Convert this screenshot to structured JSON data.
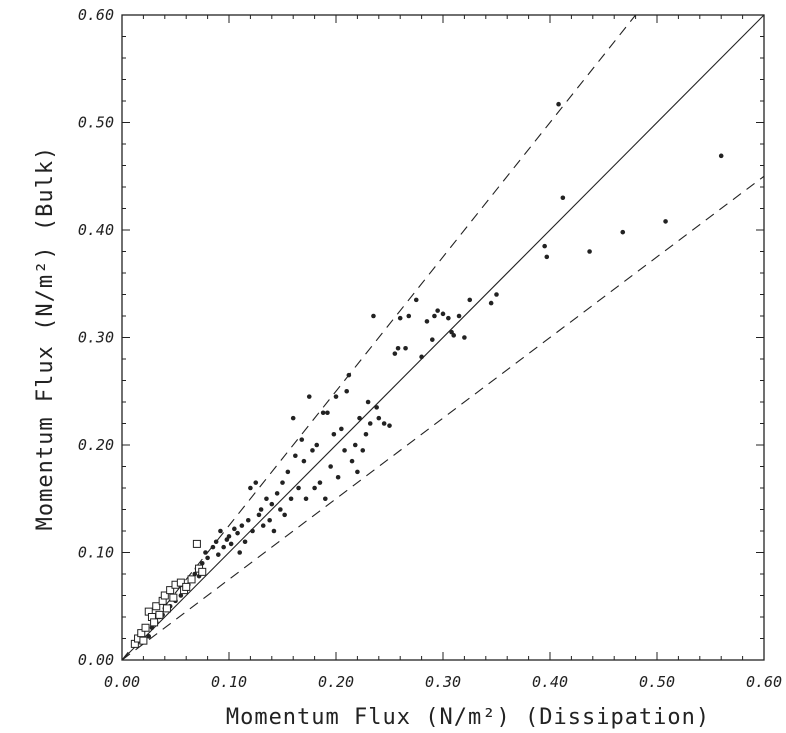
{
  "chart_data": {
    "type": "scatter",
    "xlabel": "Momentum Flux   (N/m²)  (Dissipation)",
    "ylabel": "Momentum Flux  (N/m²)     (Bulk)",
    "xlim": [
      0.0,
      0.6
    ],
    "ylim": [
      0.0,
      0.6
    ],
    "xticks": [
      "0.00",
      "0.10",
      "0.20",
      "0.30",
      "0.40",
      "0.50",
      "0.60"
    ],
    "yticks": [
      "0.00",
      "0.10",
      "0.20",
      "0.30",
      "0.40",
      "0.50",
      "0.60"
    ],
    "grid": false,
    "reference_lines": [
      {
        "style": "solid",
        "slope": 1.0
      },
      {
        "style": "dashed",
        "slope": 1.25
      },
      {
        "style": "dashed",
        "slope": 0.75
      }
    ],
    "series": [
      {
        "marker": "filled-dot",
        "points": [
          [
            0.02,
            0.018
          ],
          [
            0.025,
            0.022
          ],
          [
            0.028,
            0.03
          ],
          [
            0.032,
            0.035
          ],
          [
            0.035,
            0.04
          ],
          [
            0.038,
            0.042
          ],
          [
            0.04,
            0.048
          ],
          [
            0.045,
            0.05
          ],
          [
            0.05,
            0.055
          ],
          [
            0.055,
            0.06
          ],
          [
            0.058,
            0.065
          ],
          [
            0.062,
            0.07
          ],
          [
            0.065,
            0.075
          ],
          [
            0.068,
            0.08
          ],
          [
            0.07,
            0.085
          ],
          [
            0.072,
            0.078
          ],
          [
            0.075,
            0.09
          ],
          [
            0.078,
            0.1
          ],
          [
            0.08,
            0.095
          ],
          [
            0.085,
            0.105
          ],
          [
            0.088,
            0.11
          ],
          [
            0.09,
            0.098
          ],
          [
            0.092,
            0.12
          ],
          [
            0.095,
            0.105
          ],
          [
            0.098,
            0.112
          ],
          [
            0.1,
            0.115
          ],
          [
            0.102,
            0.108
          ],
          [
            0.105,
            0.122
          ],
          [
            0.108,
            0.118
          ],
          [
            0.11,
            0.1
          ],
          [
            0.112,
            0.125
          ],
          [
            0.115,
            0.11
          ],
          [
            0.118,
            0.13
          ],
          [
            0.12,
            0.16
          ],
          [
            0.122,
            0.12
          ],
          [
            0.125,
            0.165
          ],
          [
            0.128,
            0.135
          ],
          [
            0.13,
            0.14
          ],
          [
            0.132,
            0.125
          ],
          [
            0.135,
            0.15
          ],
          [
            0.138,
            0.13
          ],
          [
            0.14,
            0.145
          ],
          [
            0.142,
            0.12
          ],
          [
            0.145,
            0.155
          ],
          [
            0.148,
            0.14
          ],
          [
            0.15,
            0.165
          ],
          [
            0.152,
            0.135
          ],
          [
            0.155,
            0.175
          ],
          [
            0.158,
            0.15
          ],
          [
            0.16,
            0.225
          ],
          [
            0.162,
            0.19
          ],
          [
            0.165,
            0.16
          ],
          [
            0.168,
            0.205
          ],
          [
            0.17,
            0.185
          ],
          [
            0.172,
            0.15
          ],
          [
            0.175,
            0.245
          ],
          [
            0.178,
            0.195
          ],
          [
            0.18,
            0.16
          ],
          [
            0.182,
            0.2
          ],
          [
            0.185,
            0.165
          ],
          [
            0.188,
            0.23
          ],
          [
            0.19,
            0.15
          ],
          [
            0.192,
            0.23
          ],
          [
            0.195,
            0.18
          ],
          [
            0.198,
            0.21
          ],
          [
            0.2,
            0.245
          ],
          [
            0.202,
            0.17
          ],
          [
            0.205,
            0.215
          ],
          [
            0.208,
            0.195
          ],
          [
            0.21,
            0.25
          ],
          [
            0.212,
            0.265
          ],
          [
            0.215,
            0.185
          ],
          [
            0.218,
            0.2
          ],
          [
            0.22,
            0.175
          ],
          [
            0.222,
            0.225
          ],
          [
            0.225,
            0.195
          ],
          [
            0.228,
            0.21
          ],
          [
            0.23,
            0.24
          ],
          [
            0.232,
            0.22
          ],
          [
            0.235,
            0.32
          ],
          [
            0.238,
            0.235
          ],
          [
            0.24,
            0.225
          ],
          [
            0.245,
            0.22
          ],
          [
            0.25,
            0.218
          ],
          [
            0.255,
            0.285
          ],
          [
            0.258,
            0.29
          ],
          [
            0.26,
            0.318
          ],
          [
            0.265,
            0.29
          ],
          [
            0.268,
            0.32
          ],
          [
            0.275,
            0.335
          ],
          [
            0.28,
            0.282
          ],
          [
            0.285,
            0.315
          ],
          [
            0.29,
            0.298
          ],
          [
            0.292,
            0.32
          ],
          [
            0.295,
            0.325
          ],
          [
            0.3,
            0.322
          ],
          [
            0.305,
            0.318
          ],
          [
            0.308,
            0.305
          ],
          [
            0.31,
            0.302
          ],
          [
            0.315,
            0.32
          ],
          [
            0.32,
            0.3
          ],
          [
            0.325,
            0.335
          ],
          [
            0.345,
            0.332
          ],
          [
            0.35,
            0.34
          ],
          [
            0.395,
            0.385
          ],
          [
            0.397,
            0.375
          ],
          [
            0.408,
            0.517
          ],
          [
            0.412,
            0.43
          ],
          [
            0.437,
            0.38
          ],
          [
            0.468,
            0.398
          ],
          [
            0.508,
            0.408
          ],
          [
            0.56,
            0.469
          ]
        ]
      },
      {
        "marker": "open-square",
        "points": [
          [
            0.012,
            0.015
          ],
          [
            0.015,
            0.02
          ],
          [
            0.018,
            0.025
          ],
          [
            0.02,
            0.018
          ],
          [
            0.022,
            0.03
          ],
          [
            0.025,
            0.045
          ],
          [
            0.028,
            0.04
          ],
          [
            0.03,
            0.035
          ],
          [
            0.032,
            0.05
          ],
          [
            0.035,
            0.042
          ],
          [
            0.038,
            0.055
          ],
          [
            0.04,
            0.06
          ],
          [
            0.042,
            0.048
          ],
          [
            0.045,
            0.065
          ],
          [
            0.048,
            0.058
          ],
          [
            0.05,
            0.07
          ],
          [
            0.055,
            0.072
          ],
          [
            0.058,
            0.065
          ],
          [
            0.06,
            0.068
          ],
          [
            0.065,
            0.075
          ],
          [
            0.07,
            0.108
          ],
          [
            0.072,
            0.085
          ],
          [
            0.075,
            0.082
          ]
        ]
      }
    ]
  }
}
